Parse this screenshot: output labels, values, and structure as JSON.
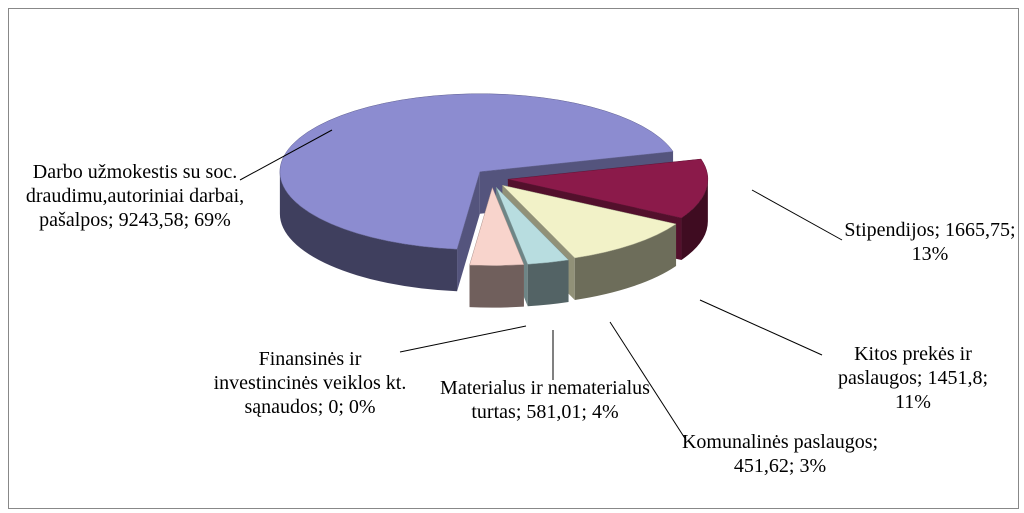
{
  "chart_data": {
    "type": "pie",
    "categories": [
      "Stipendijos",
      "Kitos prekės ir paslaugos",
      "Komunalinės paslaugos",
      "Materialus ir nematerialus turtas",
      "Finansinės ir investincinės veiklos kt. sąnaudos",
      "Darbo užmokestis su soc. draudimu,autoriniai darbai, pašalpos"
    ],
    "values": [
      1665.75,
      1451.8,
      451.62,
      581.01,
      0,
      9243.58
    ],
    "value_labels": [
      "1665,75",
      "1451,8",
      "451,62",
      "581,01",
      "0",
      "9243,58"
    ],
    "percents": [
      13,
      11,
      3,
      4,
      0,
      69
    ],
    "percent_labels": [
      "13%",
      "11%",
      "3%",
      "4%",
      "0%",
      "69%"
    ],
    "label_separator": "; ",
    "colors": [
      "#8b1a4a",
      "#f2f2c8",
      "#b8dde0",
      "#f8d4cc",
      "#d0d0d0",
      "#8c8cd0"
    ]
  }
}
